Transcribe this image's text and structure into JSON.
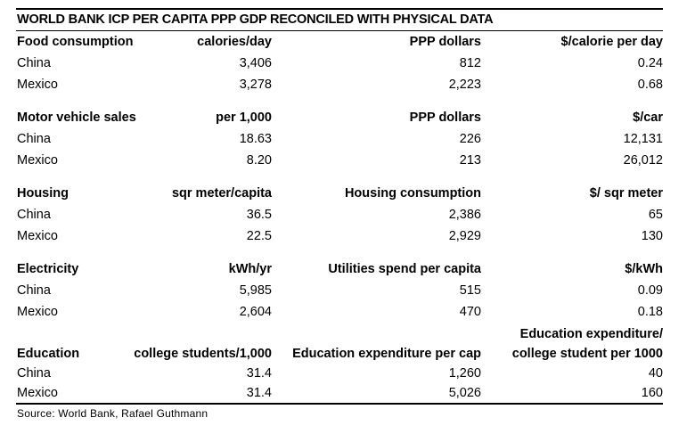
{
  "page": {
    "title": "WORLD BANK ICP PER CAPITA PPP GDP RECONCILED WITH PHYSICAL DATA",
    "source_note": "Source: World Bank, Rafael Guthmann"
  },
  "colors": {
    "background": "#ffffff",
    "text": "#000000",
    "rule": "#000000"
  },
  "chart_data": {
    "type": "table",
    "title": "WORLD BANK ICP PER CAPITA PPP GDP RECONCILED WITH PHYSICAL DATA",
    "source_note": "Source: World Bank, Rafael Guthmann",
    "layout": {
      "column_alignment": [
        "left",
        "right",
        "right",
        "right"
      ],
      "grid": "off",
      "rules": [
        "top",
        "below-title",
        "above-source"
      ]
    },
    "countries": [
      "China",
      "Mexico"
    ],
    "sections": [
      {
        "label": "Food consumption",
        "headers": [
          "Food consumption",
          "calories/day",
          "PPP dollars",
          "$/calorie per day"
        ],
        "rows": [
          [
            "China",
            "3,406",
            "812",
            "0.24"
          ],
          [
            "Mexico",
            "3,278",
            "2,223",
            "0.68"
          ]
        ]
      },
      {
        "label": "Motor vehicle sales",
        "headers": [
          "Motor vehicle sales",
          "per 1,000",
          "PPP dollars",
          "$/car"
        ],
        "rows": [
          [
            "China",
            "18.63",
            "226",
            "12,131"
          ],
          [
            "Mexico",
            "8.20",
            "213",
            "26,012"
          ]
        ]
      },
      {
        "label": "Housing",
        "headers": [
          "Housing",
          "sqr meter/capita",
          "Housing consumption",
          "$/ sqr meter"
        ],
        "rows": [
          [
            "China",
            "36.5",
            "2,386",
            "65"
          ],
          [
            "Mexico",
            "22.5",
            "2,929",
            "130"
          ]
        ]
      },
      {
        "label": "Electricity",
        "headers": [
          "Electricity",
          "kWh/yr",
          "Utilities spend per capita",
          "$/kWh"
        ],
        "rows": [
          [
            "China",
            "5,985",
            "515",
            "0.09"
          ],
          [
            "Mexico",
            "2,604",
            "470",
            "0.18"
          ]
        ]
      },
      {
        "label": "Education",
        "headers": [
          "Education",
          "college students/1,000",
          "Education expenditure per cap",
          "Education expenditure/\ncollege student per 1000"
        ],
        "rows": [
          [
            "China",
            "31.4",
            "1,260",
            "40"
          ],
          [
            "Mexico",
            "31.4",
            "5,026",
            "160"
          ]
        ]
      }
    ]
  }
}
